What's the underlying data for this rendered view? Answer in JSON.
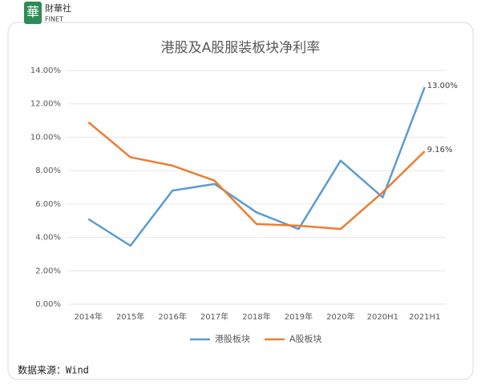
{
  "logo": {
    "mark": "華",
    "name": "財華社",
    "sub": "FINET"
  },
  "chart_data": {
    "type": "line",
    "title": "港股及A股服装板块净利率",
    "categories": [
      "2014年",
      "2015年",
      "2016年",
      "2017年",
      "2018年",
      "2019年",
      "2020年",
      "2020H1",
      "2021H1"
    ],
    "series": [
      {
        "name": "港股板块",
        "color": "#5b9bd5",
        "values": [
          5.1,
          3.5,
          6.8,
          7.2,
          5.5,
          4.5,
          8.6,
          6.4,
          13.0
        ],
        "value_labels": [
          null,
          null,
          null,
          null,
          null,
          null,
          null,
          null,
          "13.00%"
        ]
      },
      {
        "name": "A股板块",
        "color": "#ed7d31",
        "values": [
          10.9,
          8.8,
          8.3,
          7.4,
          4.8,
          4.7,
          4.5,
          6.7,
          9.16
        ],
        "value_labels": [
          null,
          null,
          null,
          null,
          null,
          null,
          null,
          null,
          "9.16%"
        ]
      }
    ],
    "ylim": [
      0,
      14
    ],
    "yticks": [
      {
        "value": 0,
        "label": "0.00%"
      },
      {
        "value": 2,
        "label": "2.00%"
      },
      {
        "value": 4,
        "label": "4.00%"
      },
      {
        "value": 6,
        "label": "6.00%"
      },
      {
        "value": 8,
        "label": "8.00%"
      },
      {
        "value": 10,
        "label": "10.00%"
      },
      {
        "value": 12,
        "label": "12.00%"
      },
      {
        "value": 14,
        "label": "14.00%"
      }
    ],
    "grid": true,
    "legend": "bottom",
    "source": "数据来源：Wind"
  }
}
